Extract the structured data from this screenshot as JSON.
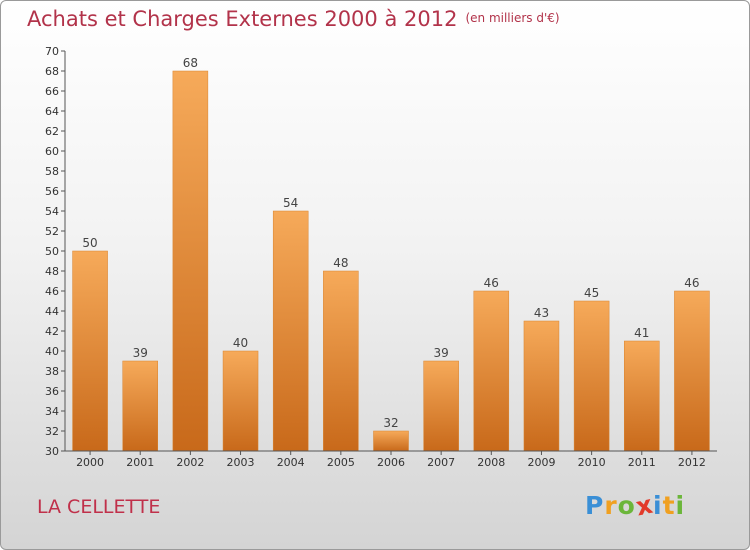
{
  "chart_data": {
    "type": "bar",
    "title": "Achats et Charges Externes 2000 à 2012",
    "unit": "(en milliers d'€)",
    "categories": [
      "2000",
      "2001",
      "2002",
      "2003",
      "2004",
      "2005",
      "2006",
      "2007",
      "2008",
      "2009",
      "2010",
      "2011",
      "2012"
    ],
    "values": [
      50,
      39,
      68,
      40,
      54,
      48,
      32,
      39,
      46,
      43,
      45,
      41,
      46
    ],
    "ylim": [
      30,
      70
    ],
    "ytick_step": 2,
    "grid": false,
    "bar_color": "#e8842c",
    "bar_color_light": "#f6aa5a",
    "bar_color_dark": "#c8691a"
  },
  "footer": {
    "city": "LA CELLETTE",
    "logo_letters": [
      "P",
      "r",
      "o",
      "x",
      "i",
      "t",
      "i"
    ],
    "logo_colors": [
      "#3a8fd6",
      "#f0a020",
      "#6bb63a",
      "#e23a2a",
      "#3a8fd6",
      "#f0a020",
      "#6bb63a"
    ]
  }
}
